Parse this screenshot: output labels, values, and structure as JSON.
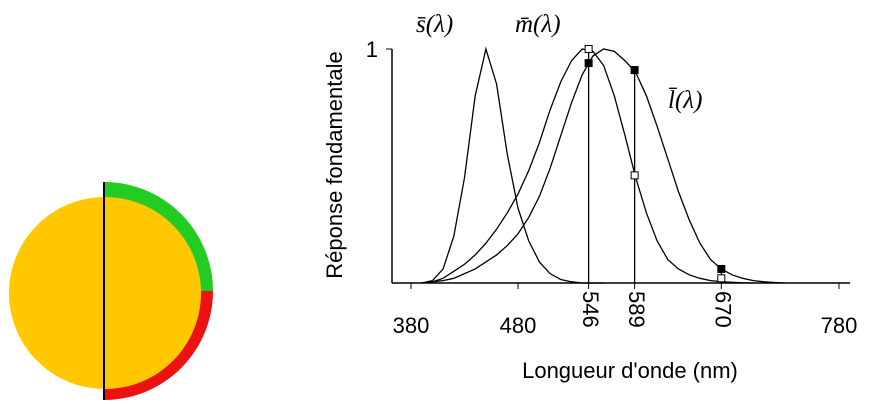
{
  "chart_data": {
    "type": "line",
    "x_label": "Longueur d'onde (nm)",
    "y_label": "Réponse fondamentale",
    "x": [
      390,
      400,
      410,
      420,
      430,
      440,
      450,
      460,
      470,
      480,
      490,
      500,
      510,
      520,
      530,
      540,
      550,
      560,
      570,
      580,
      590,
      600,
      610,
      620,
      630,
      640,
      650,
      660,
      670,
      680,
      690,
      700,
      710,
      720,
      730
    ],
    "series": [
      {
        "name": "s̄(λ)",
        "color": "#000000",
        "values": [
          0,
          0.01,
          0.06,
          0.2,
          0.45,
          0.8,
          1.0,
          0.85,
          0.55,
          0.32,
          0.18,
          0.09,
          0.04,
          0.015,
          0.005,
          0,
          0,
          0,
          null,
          null,
          null,
          null,
          null,
          null,
          null,
          null,
          null,
          null,
          null,
          null,
          null,
          null,
          null,
          null,
          null
        ]
      },
      {
        "name": "m̄(λ)",
        "color": "#000000",
        "values": [
          0,
          0.005,
          0.02,
          0.05,
          0.08,
          0.12,
          0.17,
          0.23,
          0.3,
          0.38,
          0.48,
          0.6,
          0.74,
          0.86,
          0.95,
          1.0,
          0.99,
          0.93,
          0.8,
          0.63,
          0.45,
          0.3,
          0.18,
          0.1,
          0.06,
          0.035,
          0.02,
          0.01,
          0.006,
          0.003,
          0.001,
          0,
          null,
          null,
          null
        ]
      },
      {
        "name": "l̄(λ)",
        "color": "#000000",
        "values": [
          0,
          0.005,
          0.01,
          0.02,
          0.04,
          0.06,
          0.09,
          0.12,
          0.16,
          0.21,
          0.28,
          0.37,
          0.49,
          0.63,
          0.77,
          0.89,
          0.97,
          1.0,
          0.99,
          0.95,
          0.9,
          0.8,
          0.67,
          0.53,
          0.39,
          0.27,
          0.17,
          0.1,
          0.06,
          0.035,
          0.02,
          0.01,
          0.005,
          0.002,
          0
        ]
      }
    ],
    "markers": {
      "x": [
        546,
        589,
        670
      ],
      "filled": [
        0.94,
        0.91,
        0.06
      ],
      "open": [
        1.0,
        0.46,
        0.02
      ]
    },
    "xlim": [
      380,
      780
    ],
    "xticks": [
      380,
      480,
      546,
      589,
      670,
      780
    ],
    "ylim": [
      0,
      1
    ],
    "yticks": [
      1
    ],
    "grid": false
  }
}
